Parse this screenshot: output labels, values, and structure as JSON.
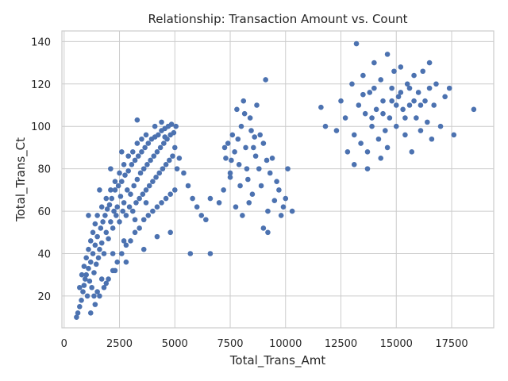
{
  "chart_data": {
    "type": "scatter",
    "title": "Relationship: Transaction Amount vs. Count",
    "xlabel": "Total_Trans_Amt",
    "ylabel": "Total_Trans_Ct",
    "xlim": [
      -100,
      19400
    ],
    "ylim": [
      5,
      145
    ],
    "xticks": [
      0,
      2500,
      5000,
      7500,
      10000,
      12500,
      15000,
      17500
    ],
    "yticks": [
      20,
      40,
      60,
      80,
      100,
      120,
      140
    ],
    "xtick_labels": [
      "0",
      "2500",
      "5000",
      "7500",
      "10000",
      "12500",
      "15000",
      "17500"
    ],
    "ytick_labels": [
      "20",
      "40",
      "60",
      "80",
      "100",
      "120",
      "140"
    ],
    "grid": true,
    "legend": "none",
    "marker_color": "#4c72b0",
    "series": [
      {
        "points": [
          [
            560,
            10
          ],
          [
            620,
            12
          ],
          [
            700,
            15
          ],
          [
            780,
            18
          ],
          [
            850,
            22
          ],
          [
            900,
            25
          ],
          [
            950,
            28
          ],
          [
            1000,
            30
          ],
          [
            1050,
            20
          ],
          [
            1100,
            33
          ],
          [
            1150,
            27
          ],
          [
            1200,
            36
          ],
          [
            1250,
            24
          ],
          [
            1300,
            40
          ],
          [
            1350,
            31
          ],
          [
            1400,
            44
          ],
          [
            1450,
            35
          ],
          [
            1500,
            48
          ],
          [
            1550,
            38
          ],
          [
            1600,
            42
          ],
          [
            1650,
            52
          ],
          [
            1700,
            45
          ],
          [
            1750,
            55
          ],
          [
            1800,
            40
          ],
          [
            1850,
            58
          ],
          [
            1900,
            50
          ],
          [
            1950,
            61
          ],
          [
            2000,
            47
          ],
          [
            2050,
            63
          ],
          [
            2100,
            55
          ],
          [
            2150,
            66
          ],
          [
            2200,
            52
          ],
          [
            2250,
            60
          ],
          [
            2300,
            70
          ],
          [
            2350,
            58
          ],
          [
            2400,
            62
          ],
          [
            2450,
            72
          ],
          [
            2500,
            55
          ],
          [
            2550,
            67
          ],
          [
            2600,
            74
          ],
          [
            2650,
            60
          ],
          [
            2700,
            64
          ],
          [
            2750,
            77
          ],
          [
            2800,
            58
          ],
          [
            2850,
            70
          ],
          [
            2900,
            79
          ],
          [
            2950,
            62
          ],
          [
            3000,
            68
          ],
          [
            3050,
            82
          ],
          [
            3100,
            60
          ],
          [
            3150,
            72
          ],
          [
            3200,
            84
          ],
          [
            3250,
            64
          ],
          [
            3300,
            75
          ],
          [
            3350,
            86
          ],
          [
            3400,
            66
          ],
          [
            3450,
            78
          ],
          [
            3500,
            88
          ],
          [
            3550,
            68
          ],
          [
            3600,
            80
          ],
          [
            3650,
            90
          ],
          [
            3700,
            70
          ],
          [
            3750,
            82
          ],
          [
            3800,
            92
          ],
          [
            3850,
            72
          ],
          [
            3900,
            84
          ],
          [
            3950,
            94
          ],
          [
            4000,
            74
          ],
          [
            4050,
            86
          ],
          [
            4100,
            95
          ],
          [
            4150,
            76
          ],
          [
            4200,
            88
          ],
          [
            4250,
            96
          ],
          [
            4300,
            78
          ],
          [
            4350,
            90
          ],
          [
            4400,
            98
          ],
          [
            4450,
            80
          ],
          [
            4500,
            92
          ],
          [
            4550,
            99
          ],
          [
            4600,
            82
          ],
          [
            4650,
            94
          ],
          [
            4700,
            100
          ],
          [
            4750,
            84
          ],
          [
            4800,
            96
          ],
          [
            4850,
            101
          ],
          [
            4900,
            86
          ],
          [
            4950,
            97
          ],
          [
            5000,
            90
          ],
          [
            5050,
            100
          ],
          [
            5100,
            80
          ],
          [
            1200,
            12
          ],
          [
            1400,
            16
          ],
          [
            1600,
            20
          ],
          [
            1800,
            24
          ],
          [
            2000,
            28
          ],
          [
            2200,
            32
          ],
          [
            2400,
            36
          ],
          [
            2600,
            40
          ],
          [
            2800,
            44
          ],
          [
            3000,
            46
          ],
          [
            3200,
            50
          ],
          [
            3400,
            52
          ],
          [
            3600,
            56
          ],
          [
            3800,
            58
          ],
          [
            4000,
            60
          ],
          [
            4200,
            62
          ],
          [
            4400,
            64
          ],
          [
            4600,
            66
          ],
          [
            4800,
            68
          ],
          [
            5000,
            70
          ],
          [
            700,
            24
          ],
          [
            800,
            30
          ],
          [
            900,
            34
          ],
          [
            1000,
            38
          ],
          [
            1100,
            42
          ],
          [
            1200,
            46
          ],
          [
            1300,
            50
          ],
          [
            1400,
            54
          ],
          [
            1500,
            58
          ],
          [
            1700,
            62
          ],
          [
            1900,
            66
          ],
          [
            2100,
            70
          ],
          [
            2300,
            74
          ],
          [
            2500,
            78
          ],
          [
            2700,
            82
          ],
          [
            2900,
            86
          ],
          [
            3100,
            88
          ],
          [
            3300,
            92
          ],
          [
            3500,
            94
          ],
          [
            3700,
            96
          ],
          [
            3300,
            103
          ],
          [
            4100,
            100
          ],
          [
            4400,
            102
          ],
          [
            4550,
            95
          ],
          [
            5200,
            85
          ],
          [
            5400,
            78
          ],
          [
            5600,
            72
          ],
          [
            5800,
            66
          ],
          [
            6000,
            62
          ],
          [
            6200,
            58
          ],
          [
            6400,
            56
          ],
          [
            6600,
            40
          ],
          [
            5700,
            40
          ],
          [
            4800,
            50
          ],
          [
            4200,
            48
          ],
          [
            3600,
            42
          ],
          [
            2800,
            36
          ],
          [
            2300,
            32
          ],
          [
            1900,
            26
          ],
          [
            1500,
            22
          ],
          [
            1100,
            58
          ],
          [
            1600,
            70
          ],
          [
            2100,
            80
          ],
          [
            2600,
            88
          ],
          [
            1350,
            20
          ],
          [
            1700,
            28
          ],
          [
            2200,
            40
          ],
          [
            2700,
            46
          ],
          [
            3200,
            56
          ],
          [
            3700,
            64
          ],
          [
            7200,
            70
          ],
          [
            7300,
            85
          ],
          [
            7400,
            92
          ],
          [
            7500,
            78
          ],
          [
            7600,
            96
          ],
          [
            7700,
            88
          ],
          [
            7800,
            108
          ],
          [
            7900,
            82
          ],
          [
            8000,
            100
          ],
          [
            8100,
            112
          ],
          [
            8200,
            90
          ],
          [
            8300,
            75
          ],
          [
            8400,
            104
          ],
          [
            8500,
            68
          ],
          [
            8600,
            95
          ],
          [
            8700,
            110
          ],
          [
            8800,
            80
          ],
          [
            8900,
            72
          ],
          [
            9000,
            92
          ],
          [
            9100,
            122
          ],
          [
            9200,
            60
          ],
          [
            9300,
            78
          ],
          [
            9400,
            85
          ],
          [
            9500,
            65
          ],
          [
            9600,
            74
          ],
          [
            9700,
            70
          ],
          [
            9800,
            58
          ],
          [
            9900,
            62
          ],
          [
            10000,
            66
          ],
          [
            10100,
            80
          ],
          [
            10300,
            60
          ],
          [
            9000,
            52
          ],
          [
            9200,
            50
          ],
          [
            6600,
            66
          ],
          [
            7000,
            64
          ],
          [
            7500,
            76
          ],
          [
            7750,
            62
          ],
          [
            8050,
            58
          ],
          [
            8350,
            64
          ],
          [
            8650,
            86
          ],
          [
            8450,
            98
          ],
          [
            8150,
            106
          ],
          [
            7850,
            94
          ],
          [
            7550,
            84
          ],
          [
            7250,
            90
          ],
          [
            7950,
            72
          ],
          [
            8250,
            80
          ],
          [
            8550,
            90
          ],
          [
            8850,
            96
          ],
          [
            9150,
            84
          ],
          [
            11600,
            109
          ],
          [
            11800,
            100
          ],
          [
            12300,
            98
          ],
          [
            12500,
            112
          ],
          [
            12700,
            104
          ],
          [
            12800,
            88
          ],
          [
            13000,
            120
          ],
          [
            13100,
            96
          ],
          [
            13200,
            139
          ],
          [
            13300,
            110
          ],
          [
            13400,
            92
          ],
          [
            13500,
            124
          ],
          [
            13600,
            106
          ],
          [
            13700,
            88
          ],
          [
            13800,
            116
          ],
          [
            13900,
            100
          ],
          [
            14000,
            130
          ],
          [
            14100,
            108
          ],
          [
            14200,
            94
          ],
          [
            14300,
            122
          ],
          [
            14400,
            112
          ],
          [
            14500,
            98
          ],
          [
            14600,
            134
          ],
          [
            14700,
            104
          ],
          [
            14800,
            118
          ],
          [
            14900,
            126
          ],
          [
            15000,
            100
          ],
          [
            15100,
            114
          ],
          [
            15200,
            128
          ],
          [
            15300,
            108
          ],
          [
            15400,
            96
          ],
          [
            15500,
            120
          ],
          [
            15600,
            110
          ],
          [
            15700,
            88
          ],
          [
            15800,
            124
          ],
          [
            15900,
            104
          ],
          [
            16000,
            116
          ],
          [
            16100,
            98
          ],
          [
            16200,
            126
          ],
          [
            16300,
            112
          ],
          [
            16400,
            102
          ],
          [
            16500,
            130
          ],
          [
            16600,
            94
          ],
          [
            16700,
            110
          ],
          [
            16800,
            120
          ],
          [
            17000,
            100
          ],
          [
            17200,
            114
          ],
          [
            17400,
            118
          ],
          [
            17600,
            96
          ],
          [
            18500,
            108
          ],
          [
            13100,
            82
          ],
          [
            13700,
            80
          ],
          [
            14300,
            85
          ],
          [
            14600,
            90
          ],
          [
            13500,
            115
          ],
          [
            14000,
            118
          ],
          [
            14800,
            112
          ],
          [
            15200,
            116
          ],
          [
            15600,
            118
          ],
          [
            16100,
            110
          ],
          [
            16500,
            118
          ],
          [
            13900,
            104
          ],
          [
            14400,
            106
          ],
          [
            15000,
            110
          ],
          [
            15400,
            104
          ],
          [
            15800,
            112
          ]
        ]
      }
    ]
  }
}
